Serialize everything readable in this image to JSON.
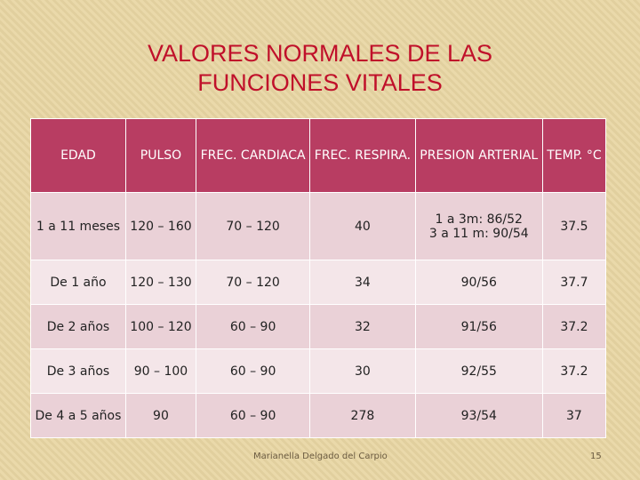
{
  "title": "VALORES NORMALES DE LAS FUNCIONES VITALES",
  "table": {
    "header": [
      "EDAD",
      "PULSO",
      "FREC. CARDIACA",
      "FREC. RESPIRA.",
      "PRESION ARTERIAL",
      "TEMP. °C"
    ],
    "rows": [
      [
        "1 a 11 meses",
        "120 – 160",
        "70 – 120",
        "40",
        "1 a 3m: 86/52\n3  a  11 m: 90/54",
        "37.5"
      ],
      [
        "De 1 año",
        "120 – 130",
        "70 – 120",
        "34",
        "90/56",
        "37.7"
      ],
      [
        "De 2 años",
        "100 – 120",
        "60 – 90",
        "32",
        "91/56",
        "37.2"
      ],
      [
        "De 3 años",
        "90 – 100",
        "60 – 90",
        "30",
        "92/55",
        "37.2"
      ],
      [
        "De 4 a 5 años",
        "90",
        "60 – 90",
        "278",
        "93/54",
        "37"
      ]
    ]
  },
  "footer": {
    "author": "Marianella Delgado del Carpio",
    "page": "15"
  }
}
